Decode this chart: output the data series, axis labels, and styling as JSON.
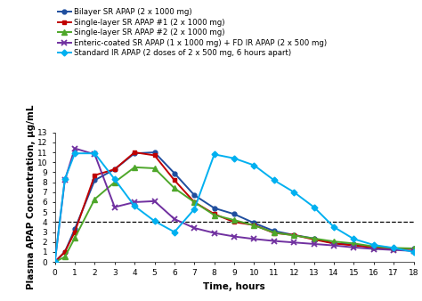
{
  "series": {
    "bilayer": {
      "label": "Bilayer SR APAP (2 x 1000 mg)",
      "color": "#1f4e9e",
      "marker": "o",
      "markersize": 3.5,
      "linewidth": 1.4,
      "x": [
        0,
        0.5,
        1,
        2,
        3,
        4,
        5,
        6,
        7,
        8,
        9,
        10,
        11,
        12,
        13,
        14,
        15,
        16,
        17,
        18
      ],
      "y": [
        0,
        1.0,
        3.3,
        8.2,
        9.3,
        10.9,
        11.0,
        8.9,
        6.7,
        5.4,
        4.8,
        3.9,
        3.1,
        2.7,
        2.35,
        1.85,
        1.75,
        1.45,
        1.35,
        1.35
      ]
    },
    "single1": {
      "label": "Single-layer SR APAP #1 (2 x 1000 mg)",
      "color": "#c00000",
      "marker": "s",
      "markersize": 3.5,
      "linewidth": 1.4,
      "x": [
        0,
        0.5,
        1,
        2,
        3,
        4,
        5,
        6,
        7,
        8,
        9,
        10,
        11,
        12,
        13,
        14,
        15,
        16,
        17,
        18
      ],
      "y": [
        0,
        1.0,
        3.0,
        8.7,
        9.3,
        11.0,
        10.7,
        8.2,
        6.0,
        4.8,
        4.0,
        3.7,
        2.9,
        2.7,
        2.25,
        1.85,
        1.65,
        1.45,
        1.3,
        1.3
      ]
    },
    "single2": {
      "label": "Single-layer SR APAP #2 (2 x 1000 mg)",
      "color": "#4ea72a",
      "marker": "^",
      "markersize": 4,
      "linewidth": 1.4,
      "x": [
        0,
        0.5,
        1,
        2,
        3,
        4,
        5,
        6,
        7,
        8,
        9,
        10,
        11,
        12,
        13,
        14,
        15,
        16,
        17,
        18
      ],
      "y": [
        0,
        0.5,
        2.4,
        6.3,
        8.0,
        9.5,
        9.4,
        7.4,
        6.0,
        4.7,
        4.2,
        3.65,
        2.95,
        2.65,
        2.35,
        2.05,
        1.85,
        1.55,
        1.4,
        1.35
      ]
    },
    "enteric": {
      "label": "Enteric-coated SR APAP (1 x 1000 mg) + FD IR APAP (2 x 500 mg)",
      "color": "#7030a0",
      "marker": "x",
      "markersize": 5,
      "linewidth": 1.4,
      "x": [
        0,
        0.5,
        1,
        2,
        3,
        4,
        5,
        6,
        7,
        8,
        9,
        10,
        11,
        12,
        13,
        14,
        15,
        16,
        17,
        18
      ],
      "y": [
        0,
        8.2,
        11.4,
        10.8,
        5.5,
        6.0,
        6.1,
        4.3,
        3.4,
        2.9,
        2.55,
        2.3,
        2.1,
        1.95,
        1.8,
        1.65,
        1.45,
        1.3,
        1.2,
        1.1
      ]
    },
    "standard": {
      "label": "Standard IR APAP (2 doses of 2 x 500 mg, 6 hours apart)",
      "color": "#00b0f0",
      "marker": "D",
      "markersize": 3.5,
      "linewidth": 1.4,
      "x": [
        0,
        0.5,
        1,
        2,
        3,
        4,
        5,
        6,
        7,
        8,
        9,
        10,
        11,
        12,
        13,
        14,
        15,
        16,
        17,
        18
      ],
      "y": [
        0,
        8.3,
        10.9,
        10.9,
        8.3,
        5.6,
        4.1,
        3.0,
        5.3,
        10.8,
        10.4,
        9.7,
        8.2,
        7.0,
        5.5,
        3.5,
        2.3,
        1.7,
        1.4,
        1.0
      ]
    }
  },
  "hline_y": 4.0,
  "xlabel": "Time, hours",
  "ylabel": "Plasma APAP Concentration, µg/mL",
  "ylim": [
    0,
    13
  ],
  "xlim": [
    0,
    18
  ],
  "xticks": [
    0,
    1,
    2,
    3,
    4,
    5,
    6,
    7,
    8,
    9,
    10,
    11,
    12,
    13,
    14,
    15,
    16,
    17,
    18
  ],
  "yticks": [
    0,
    1,
    2,
    3,
    4,
    5,
    6,
    7,
    8,
    9,
    10,
    11,
    12,
    13
  ],
  "background_color": "#ffffff",
  "legend_fontsize": 6.2,
  "axis_label_fontsize": 7.5,
  "tick_fontsize": 6.5
}
